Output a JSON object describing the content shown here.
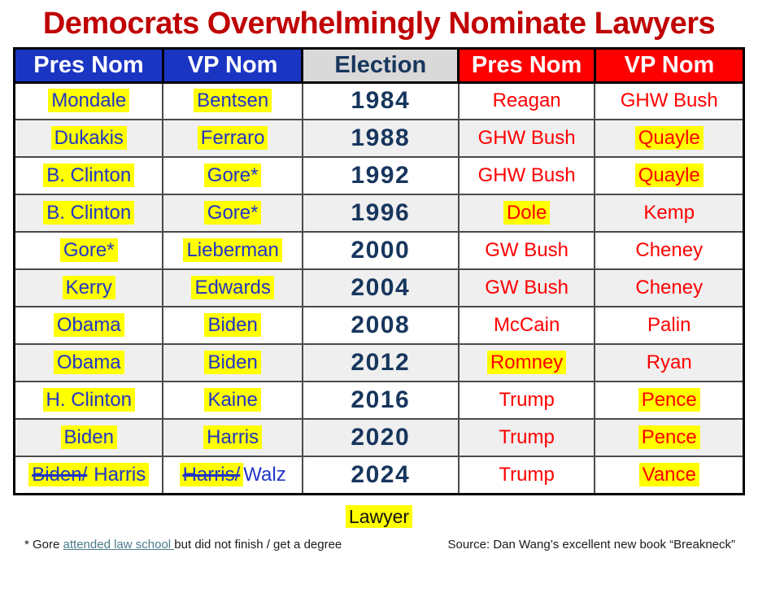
{
  "title": "Democrats Overwhelmingly Nominate Lawyers",
  "colors": {
    "title": "#C00000",
    "dem_header_bg": "#1B35C3",
    "rep_header_bg": "#FF0000",
    "election_header_bg": "#D9D9D9",
    "dem_text": "#2135C8",
    "rep_text": "#FF0000",
    "year_text": "#17365D",
    "highlight": "#FFFF00",
    "alt_row_bg": "#EFEFEF",
    "footnote_link": "#4A7A8A"
  },
  "chart_data": {
    "type": "table",
    "title": "Democrats Overwhelmingly Nominate Lawyers",
    "legend_note": "yellow highlight = Lawyer",
    "headers": [
      {
        "label": "Pres Nom",
        "style": "dem"
      },
      {
        "label": "VP Nom",
        "style": "dem"
      },
      {
        "label": "Election",
        "style": "neutral"
      },
      {
        "label": "Pres Nom",
        "style": "rep"
      },
      {
        "label": "VP Nom",
        "style": "rep"
      }
    ],
    "rows": [
      {
        "year": "1984",
        "dem_pres": [
          {
            "text": "Mondale",
            "highlight": true
          }
        ],
        "dem_vp": [
          {
            "text": "Bentsen",
            "highlight": true
          }
        ],
        "rep_pres": [
          {
            "text": "Reagan"
          }
        ],
        "rep_vp": [
          {
            "text": "GHW Bush"
          }
        ]
      },
      {
        "year": "1988",
        "dem_pres": [
          {
            "text": "Dukakis",
            "highlight": true
          }
        ],
        "dem_vp": [
          {
            "text": "Ferraro",
            "highlight": true
          }
        ],
        "rep_pres": [
          {
            "text": "GHW Bush"
          }
        ],
        "rep_vp": [
          {
            "text": "Quayle",
            "highlight": true
          }
        ]
      },
      {
        "year": "1992",
        "dem_pres": [
          {
            "text": "B. Clinton",
            "highlight": true
          }
        ],
        "dem_vp": [
          {
            "text": "Gore*",
            "highlight": true
          }
        ],
        "rep_pres": [
          {
            "text": "GHW Bush"
          }
        ],
        "rep_vp": [
          {
            "text": "Quayle",
            "highlight": true
          }
        ]
      },
      {
        "year": "1996",
        "dem_pres": [
          {
            "text": "B. Clinton",
            "highlight": true
          }
        ],
        "dem_vp": [
          {
            "text": "Gore*",
            "highlight": true
          }
        ],
        "rep_pres": [
          {
            "text": "Dole",
            "highlight": true
          }
        ],
        "rep_vp": [
          {
            "text": "Kemp"
          }
        ]
      },
      {
        "year": "2000",
        "dem_pres": [
          {
            "text": "Gore*",
            "highlight": true
          }
        ],
        "dem_vp": [
          {
            "text": "Lieberman",
            "highlight": true
          }
        ],
        "rep_pres": [
          {
            "text": "GW Bush"
          }
        ],
        "rep_vp": [
          {
            "text": "Cheney"
          }
        ]
      },
      {
        "year": "2004",
        "dem_pres": [
          {
            "text": "Kerry",
            "highlight": true
          }
        ],
        "dem_vp": [
          {
            "text": "Edwards",
            "highlight": true
          }
        ],
        "rep_pres": [
          {
            "text": "GW Bush"
          }
        ],
        "rep_vp": [
          {
            "text": "Cheney"
          }
        ]
      },
      {
        "year": "2008",
        "dem_pres": [
          {
            "text": "Obama",
            "highlight": true
          }
        ],
        "dem_vp": [
          {
            "text": "Biden",
            "highlight": true
          }
        ],
        "rep_pres": [
          {
            "text": "McCain"
          }
        ],
        "rep_vp": [
          {
            "text": "Palin"
          }
        ]
      },
      {
        "year": "2012",
        "dem_pres": [
          {
            "text": "Obama",
            "highlight": true
          }
        ],
        "dem_vp": [
          {
            "text": "Biden",
            "highlight": true
          }
        ],
        "rep_pres": [
          {
            "text": "Romney",
            "highlight": true
          }
        ],
        "rep_vp": [
          {
            "text": "Ryan"
          }
        ]
      },
      {
        "year": "2016",
        "dem_pres": [
          {
            "text": "H. Clinton",
            "highlight": true
          }
        ],
        "dem_vp": [
          {
            "text": "Kaine",
            "highlight": true
          }
        ],
        "rep_pres": [
          {
            "text": "Trump"
          }
        ],
        "rep_vp": [
          {
            "text": "Pence",
            "highlight": true
          }
        ]
      },
      {
        "year": "2020",
        "dem_pres": [
          {
            "text": "Biden",
            "highlight": true
          }
        ],
        "dem_vp": [
          {
            "text": "Harris",
            "highlight": true
          }
        ],
        "rep_pres": [
          {
            "text": "Trump"
          }
        ],
        "rep_vp": [
          {
            "text": "Pence",
            "highlight": true
          }
        ]
      },
      {
        "year": "2024",
        "dem_pres": [
          {
            "text": "Biden/",
            "highlight": true,
            "strike": true
          },
          {
            "text": "Harris",
            "highlight": true
          }
        ],
        "dem_vp": [
          {
            "text": "Harris/",
            "highlight": true,
            "strike": true
          },
          {
            "text": "Walz"
          }
        ],
        "rep_pres": [
          {
            "text": "Trump"
          }
        ],
        "rep_vp": [
          {
            "text": "Vance",
            "highlight": true
          }
        ]
      }
    ]
  },
  "legend": {
    "label": "Lawyer"
  },
  "footnote": {
    "prefix": "* Gore ",
    "link": "attended law school ",
    "suffix": "but did not finish / get a degree"
  },
  "source": "Source: Dan Wang’s excellent new book “Breakneck”"
}
